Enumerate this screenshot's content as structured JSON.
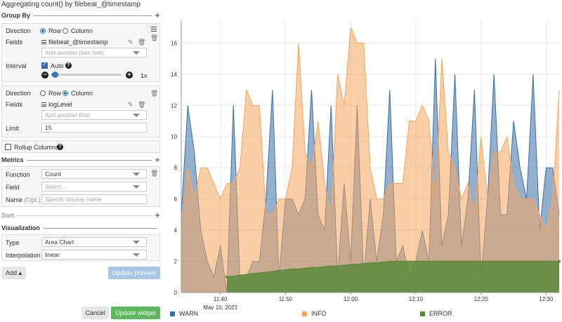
{
  "header": {
    "title": "Aggregating count() by filebeat_@timestamp"
  },
  "group_by": {
    "title": "Group By",
    "rows": {
      "direction_label": "Direction",
      "direction_options": [
        "Row",
        "Column"
      ],
      "direction_selected": "Row",
      "fields_label": "Fields",
      "field_value": "filebeat_@timestamp",
      "add_field_placeholder": "Add another date field",
      "interval_label": "Interval",
      "auto_label": "Auto",
      "auto_checked": true,
      "zoom_level": "1x",
      "zoom_fraction": 0.05
    },
    "columns": {
      "direction_label": "Direction",
      "direction_options": [
        "Row",
        "Column"
      ],
      "direction_selected": "Column",
      "fields_label": "Fields",
      "field_value": "logLevel",
      "add_field_placeholder": "Add another field",
      "limit_label": "Limit",
      "limit_value": "15"
    },
    "rollup_label": "Rollup Columns",
    "rollup_checked": false
  },
  "metrics": {
    "title": "Metrics",
    "function_label": "Function",
    "function_value": "Count",
    "field_label": "Field",
    "field_placeholder": "Select...",
    "name_label": "Name",
    "name_opt": "(Opt.)",
    "name_placeholder": "Specify display name"
  },
  "sort": {
    "title": "Sort"
  },
  "visualization": {
    "title": "Visualization",
    "type_label": "Type",
    "type_value": "Area Chart",
    "interpolation_label": "Interpolation",
    "interpolation_value": "linear"
  },
  "buttons": {
    "add": "Add",
    "update_preview": "Update preview",
    "cancel": "Cancel",
    "update_widget": "Update widget"
  },
  "colors": {
    "warn": "#3d6fa8",
    "info": "#f5a55c",
    "error": "#5a8a3c",
    "accent": "#337ab7",
    "success": "#5cb85c"
  },
  "chart_data": {
    "type": "area",
    "x_tick_labels": [
      "11:40",
      "11:50",
      "12:00",
      "12:10",
      "12:20",
      "12:30"
    ],
    "x_date_label": "May 10, 2023",
    "y_ticks": [
      0,
      2,
      4,
      6,
      8,
      10,
      12,
      14,
      16
    ],
    "ylim": [
      0,
      17.5
    ],
    "x_minutes": [
      0,
      1,
      2,
      3,
      4,
      5,
      6,
      7,
      8,
      9,
      10,
      11,
      12,
      13,
      14,
      15,
      16,
      17,
      18,
      19,
      20,
      21,
      22,
      23,
      24,
      25,
      26,
      27,
      28,
      29,
      30,
      31,
      32,
      33,
      34,
      35,
      36,
      37,
      38,
      39,
      40,
      41,
      42,
      43,
      44,
      45,
      46,
      47,
      48,
      49,
      50,
      51,
      52,
      53,
      54,
      55,
      56,
      57,
      58
    ],
    "x_start_label": "11:34",
    "grid": true,
    "legend_position": "bottom",
    "series": [
      {
        "name": "WARN",
        "color": "#3d6fa8",
        "values": [
          5,
          12,
          9,
          4,
          2,
          1,
          3,
          0,
          12,
          1,
          1,
          2,
          2,
          6,
          13,
          1,
          6,
          6,
          5,
          6,
          13,
          5,
          4,
          12,
          1,
          7,
          2,
          12,
          1,
          6,
          2,
          5,
          13,
          2,
          3,
          1,
          2,
          4,
          2,
          15,
          3,
          5,
          14,
          3,
          6,
          13,
          1,
          6,
          14,
          5,
          5,
          11,
          8,
          6,
          14,
          4,
          8,
          8,
          5
        ]
      },
      {
        "name": "INFO",
        "color": "#f5a55c",
        "values": [
          4,
          8,
          6,
          8,
          8,
          7,
          6,
          7,
          7,
          8,
          13,
          12,
          12,
          5,
          5,
          6,
          6,
          8,
          16,
          9,
          8,
          11,
          7,
          5,
          14,
          12,
          17,
          16,
          16,
          8,
          6,
          6,
          7,
          7,
          7,
          11,
          11,
          12,
          11,
          6,
          15,
          9,
          8,
          6,
          7,
          5,
          10,
          6,
          9,
          9,
          10,
          7,
          6,
          6,
          6,
          5,
          4,
          6,
          13
        ]
      },
      {
        "name": "ERROR",
        "color": "#5a8a3c",
        "values": [
          null,
          null,
          null,
          null,
          null,
          null,
          null,
          1,
          1.05,
          1.1,
          1.15,
          1.2,
          1.25,
          1.3,
          1.35,
          1.4,
          1.45,
          1.5,
          1.5,
          1.55,
          1.6,
          1.6,
          1.65,
          1.7,
          1.7,
          1.75,
          1.8,
          1.8,
          1.85,
          1.9,
          1.9,
          1.95,
          2,
          2,
          2,
          2,
          2,
          2,
          2,
          2,
          2,
          2,
          2,
          2,
          2,
          2,
          2,
          2,
          2,
          2,
          2,
          2,
          2,
          2,
          2,
          2,
          2,
          2,
          2
        ]
      }
    ]
  }
}
